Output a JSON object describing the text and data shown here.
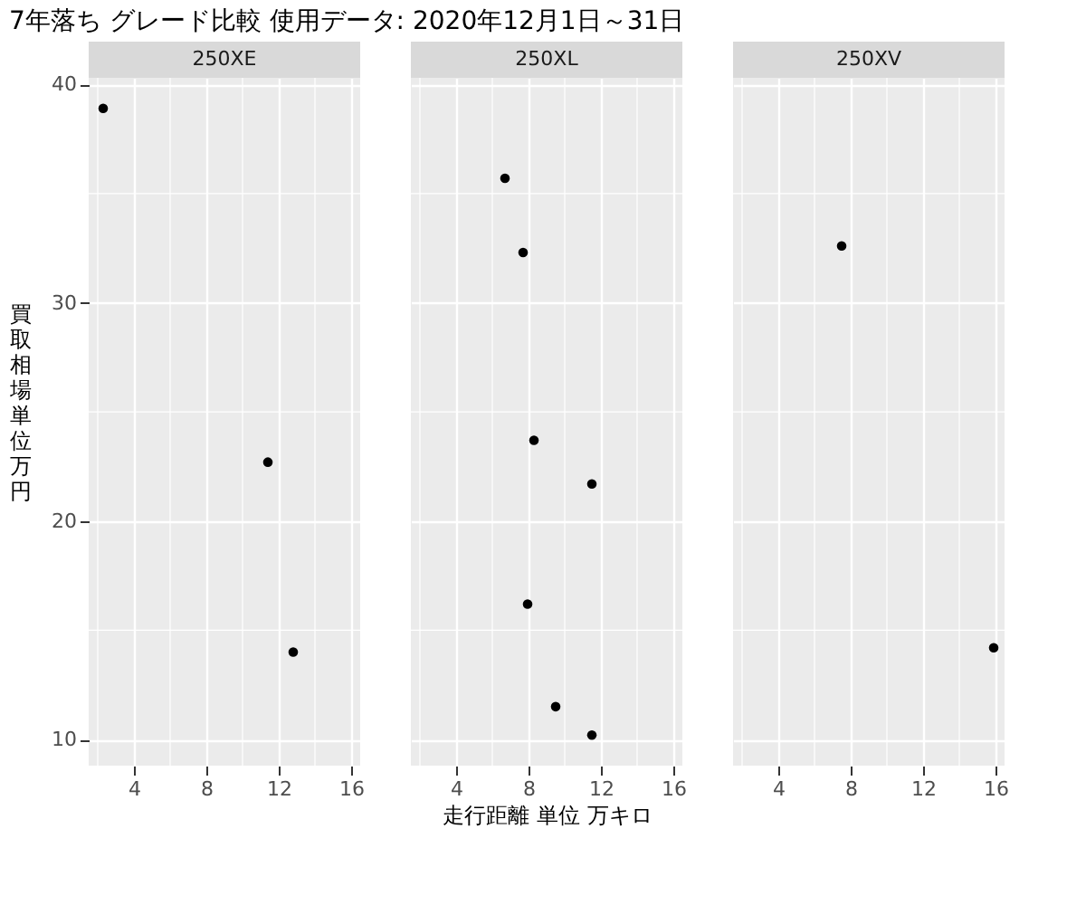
{
  "chart_data": [
    {
      "type": "scatter",
      "title": "7年落ち グレード比較 使用データ: 2020年12月1日～31日",
      "subtitle": "250XE",
      "ylabel": "買取相場単位万円",
      "x": [
        2.3,
        11.4,
        12.8
      ],
      "series": [
        {
          "color": "#000000",
          "values": [
            38.9,
            22.7,
            14.0
          ]
        }
      ],
      "xlim": [
        1.5,
        16.5
      ],
      "ylim": [
        8.8,
        40.3
      ],
      "xticks": [
        4,
        8,
        12,
        16
      ],
      "yticks": [
        10,
        20,
        30,
        40
      ],
      "grid": true,
      "marker": "circle"
    },
    {
      "type": "scatter",
      "subtitle": "250XL",
      "xlabel": "走行距離 単位 万キロ",
      "x": [
        6.7,
        7.7,
        8.3,
        11.5,
        7.95,
        9.5,
        11.5
      ],
      "series": [
        {
          "color": "#000000",
          "values": [
            35.7,
            32.3,
            23.7,
            21.7,
            16.2,
            11.5,
            10.2
          ]
        }
      ],
      "xlim": [
        1.5,
        16.5
      ],
      "ylim": [
        8.8,
        40.3
      ],
      "xticks": [
        4,
        8,
        12,
        16
      ],
      "yticks": [
        10,
        20,
        30,
        40
      ],
      "grid": true,
      "marker": "circle",
      "tick_labels": "x"
    },
    {
      "type": "scatter",
      "subtitle": "250XV",
      "x": [
        7.5,
        15.9
      ],
      "series": [
        {
          "color": "#000000",
          "values": [
            32.6,
            14.2
          ]
        }
      ],
      "xlim": [
        1.5,
        16.5
      ],
      "ylim": [
        8.8,
        40.3
      ],
      "xticks": [
        4,
        8,
        12,
        16
      ],
      "yticks": [
        10,
        20,
        30,
        40
      ],
      "grid": true,
      "marker": "circle",
      "tick_labels": "x"
    }
  ]
}
